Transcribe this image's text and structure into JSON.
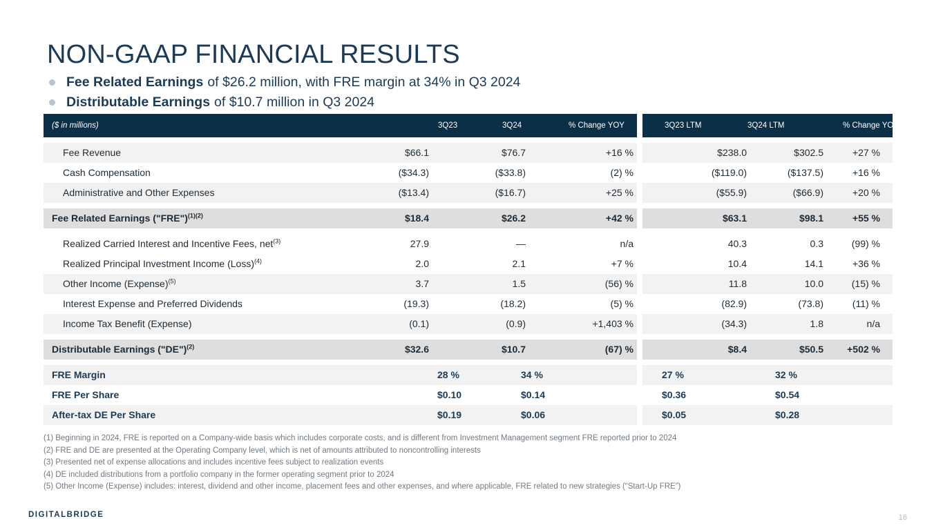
{
  "title": "NON-GAAP FINANCIAL RESULTS",
  "bullets": [
    {
      "bold": "Fee Related Earnings",
      "text": "of $26.2 million, with FRE margin at 34% in Q3 2024"
    },
    {
      "bold": "Distributable Earnings",
      "text": "of $10.7 million in Q3 2024"
    }
  ],
  "table": {
    "header": {
      "label": "($ in millions)",
      "cols": [
        "3Q23",
        "3Q24",
        "% Change YOY",
        "3Q23 LTM",
        "3Q24 LTM",
        "% Change YOY"
      ]
    },
    "rows": [
      {
        "label": "Fee Revenue",
        "sup": "",
        "vals": [
          "$66.1",
          "$76.7",
          "+16 %",
          "$238.0",
          "$302.5",
          "+27 %"
        ]
      },
      {
        "label": "Cash Compensation",
        "sup": "",
        "vals": [
          "($34.3)",
          "($33.8)",
          "(2) %",
          "($119.0)",
          "($137.5)",
          "+16 %"
        ]
      },
      {
        "label": "Administrative and Other Expenses",
        "sup": "",
        "vals": [
          "($13.4)",
          "($16.7)",
          "+25 %",
          "($55.9)",
          "($66.9)",
          "+20 %"
        ]
      },
      {
        "label": "Fee Related Earnings (\"FRE\")",
        "sup": "(1)(2)",
        "vals": [
          "$18.4",
          "$26.2",
          "+42 %",
          "$63.1",
          "$98.1",
          "+55 %"
        ]
      },
      {
        "label": "Realized Carried Interest and Incentive Fees, net",
        "sup": "(3)",
        "vals": [
          "27.9",
          "—",
          "n/a",
          "40.3",
          "0.3",
          "(99) %"
        ]
      },
      {
        "label": "Realized Principal Investment Income (Loss)",
        "sup": "(4)",
        "vals": [
          "2.0",
          "2.1",
          "+7 %",
          "10.4",
          "14.1",
          "+36 %"
        ]
      },
      {
        "label": "Other Income (Expense)",
        "sup": "(5)",
        "vals": [
          "3.7",
          "1.5",
          "(56) %",
          "11.8",
          "10.0",
          "(15) %"
        ]
      },
      {
        "label": "Interest Expense and Preferred Dividends",
        "sup": "",
        "vals": [
          "(19.3)",
          "(18.2)",
          "(5) %",
          "(82.9)",
          "(73.8)",
          "(11) %"
        ]
      },
      {
        "label": "Income Tax Benefit (Expense)",
        "sup": "",
        "vals": [
          "(0.1)",
          "(0.9)",
          "+1,403 %",
          "(34.3)",
          "1.8",
          "n/a"
        ]
      },
      {
        "label": "Distributable Earnings (\"DE\")",
        "sup": "(2)",
        "vals": [
          "$32.6",
          "$10.7",
          "(67) %",
          "$8.4",
          "$50.5",
          "+502 %"
        ]
      }
    ],
    "metrics": [
      {
        "label": "FRE Margin",
        "vals": [
          "28 %",
          "34 %",
          "27 %",
          "32 %"
        ]
      },
      {
        "label": "FRE Per Share",
        "vals": [
          "$0.10",
          "$0.14",
          "$0.36",
          "$0.54"
        ]
      },
      {
        "label": "After-tax DE Per Share",
        "vals": [
          "$0.19",
          "$0.06",
          "$0.05",
          "$0.28"
        ]
      }
    ]
  },
  "footnotes": [
    "(1) Beginning in 2024, FRE is reported on a Company-wide basis which includes corporate costs, and is different from Investment Management segment FRE reported prior to 2024",
    "(2) FRE and DE are presented at the Operating Company level, which is net of amounts attributed to noncontrolling interests",
    "(3) Presented net of expense allocations and includes incentive fees subject to realization events",
    "(4) DE included distributions from a portfolio company in the former operating segment prior to 2024",
    "(5) Other Income (Expense) includes: interest, dividend and other income, placement fees and other expenses, and where applicable, FRE related to new strategies (“Start-Up FRE”)"
  ],
  "logo": "DIGITALBRIDGE",
  "page_number": "16"
}
